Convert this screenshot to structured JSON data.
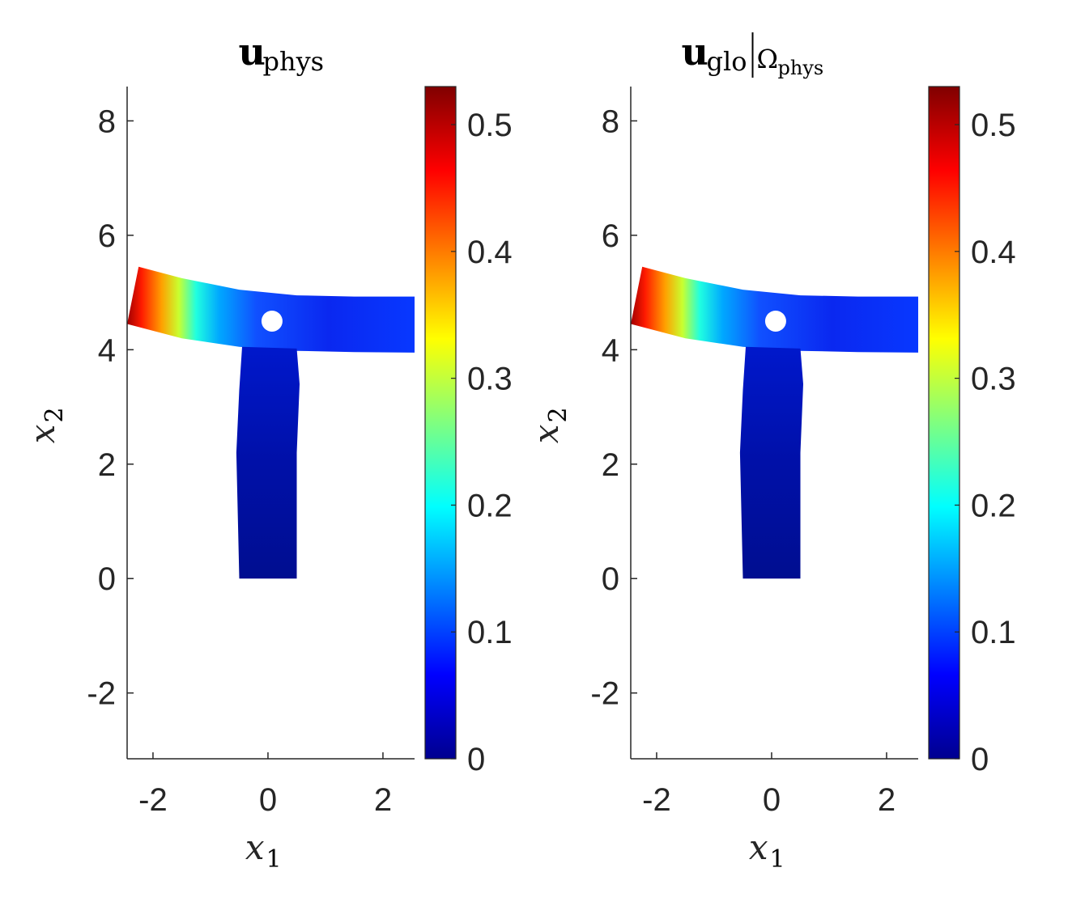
{
  "colors": {
    "axis": "#262626",
    "background": "#ffffff",
    "colormap": "jet",
    "colormap_stops": [
      "#00008f",
      "#0000ff",
      "#00ffff",
      "#ffff00",
      "#ff0000",
      "#800000"
    ]
  },
  "chart_data": [
    {
      "type": "heatmap",
      "title": {
        "base": "u",
        "subscript": "phys"
      },
      "xlabel": {
        "base": "x",
        "subscript": "1"
      },
      "ylabel": {
        "base": "x",
        "subscript": "2"
      },
      "xlim": [
        -2.45,
        2.55
      ],
      "ylim": [
        -3.15,
        8.6
      ],
      "xticks": [
        -2,
        0,
        2
      ],
      "xtick_labels": [
        "-2",
        "0",
        "2"
      ],
      "yticks": [
        -2,
        0,
        2,
        4,
        6,
        8
      ],
      "ytick_labels": [
        "-2",
        "0",
        "2",
        "4",
        "6",
        "8"
      ],
      "colorbar": {
        "limits": [
          0,
          0.53
        ],
        "ticks": [
          0,
          0.1,
          0.2,
          0.3,
          0.4,
          0.5
        ],
        "tick_labels": [
          "0",
          "0.1",
          "0.2",
          "0.3",
          "0.4",
          "0.5"
        ]
      },
      "domain": "T-shaped deformed body with circular hole",
      "displacement_magnitude_range": [
        0,
        0.53
      ]
    },
    {
      "type": "heatmap",
      "title": {
        "base": "u",
        "subscript": "glo",
        "restriction": "Ω",
        "restriction_subscript": "phys"
      },
      "xlabel": {
        "base": "x",
        "subscript": "1"
      },
      "ylabel": {
        "base": "x",
        "subscript": "2"
      },
      "xlim": [
        -2.45,
        2.55
      ],
      "ylim": [
        -3.15,
        8.6
      ],
      "xticks": [
        -2,
        0,
        2
      ],
      "xtick_labels": [
        "-2",
        "0",
        "2"
      ],
      "yticks": [
        -2,
        0,
        2,
        4,
        6,
        8
      ],
      "ytick_labels": [
        "-2",
        "0",
        "2",
        "4",
        "6",
        "8"
      ],
      "colorbar": {
        "limits": [
          0,
          0.53
        ],
        "ticks": [
          0,
          0.1,
          0.2,
          0.3,
          0.4,
          0.5
        ],
        "tick_labels": [
          "0",
          "0.1",
          "0.2",
          "0.3",
          "0.4",
          "0.5"
        ]
      },
      "domain": "T-shaped deformed body with circular hole",
      "displacement_magnitude_range": [
        0,
        0.53
      ]
    }
  ]
}
